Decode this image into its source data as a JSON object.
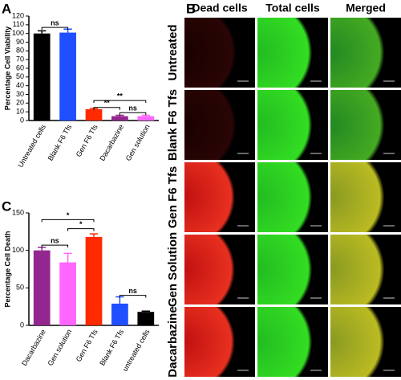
{
  "chart_data": [
    {
      "type": "bar",
      "label": "A",
      "ylabel": "Percentage Cell Viability",
      "categories": [
        "Untreated cells",
        "Blank F6 Tfs",
        "Gen F6 Tfs",
        "Dacarbazine",
        "Gen solution"
      ],
      "values": [
        100,
        101,
        13,
        5,
        5
      ],
      "errors": [
        3,
        4,
        1,
        1,
        1
      ],
      "colors": [
        "#000000",
        "#1f4fff",
        "#ff2a00",
        "#93278f",
        "#ff66ff"
      ],
      "ylim": [
        0,
        120
      ],
      "yticks": [
        0,
        10,
        20,
        30,
        40,
        50,
        60,
        70,
        80,
        90,
        100,
        110,
        120
      ],
      "annotations": [
        "ns",
        "**",
        "**",
        "ns"
      ]
    },
    {
      "type": "bar",
      "label": "C",
      "ylabel": "Percentage Cell Death",
      "categories": [
        "Dacarbazine",
        "Gen solution",
        "Gen F6 Tfs",
        "Blank F6 Tfs",
        "untreated cells"
      ],
      "values": [
        100,
        84,
        118,
        29,
        18
      ],
      "errors": [
        4,
        12,
        4,
        9,
        1
      ],
      "colors": [
        "#93278f",
        "#ff66ff",
        "#ff2a00",
        "#1f4fff",
        "#000000"
      ],
      "ylim": [
        0,
        150
      ],
      "yticks": [
        0,
        50,
        100,
        150
      ],
      "annotations": [
        "*",
        "*",
        "ns",
        "ns"
      ]
    }
  ],
  "panel_b": {
    "label": "B",
    "columns": [
      "Dead cells",
      "Total cells",
      "Merged"
    ],
    "rows": [
      "Untreated",
      "Blank F6 Tfs",
      "Gen F6 Tfs",
      "Gen Solution",
      "Dacarbazine"
    ]
  }
}
